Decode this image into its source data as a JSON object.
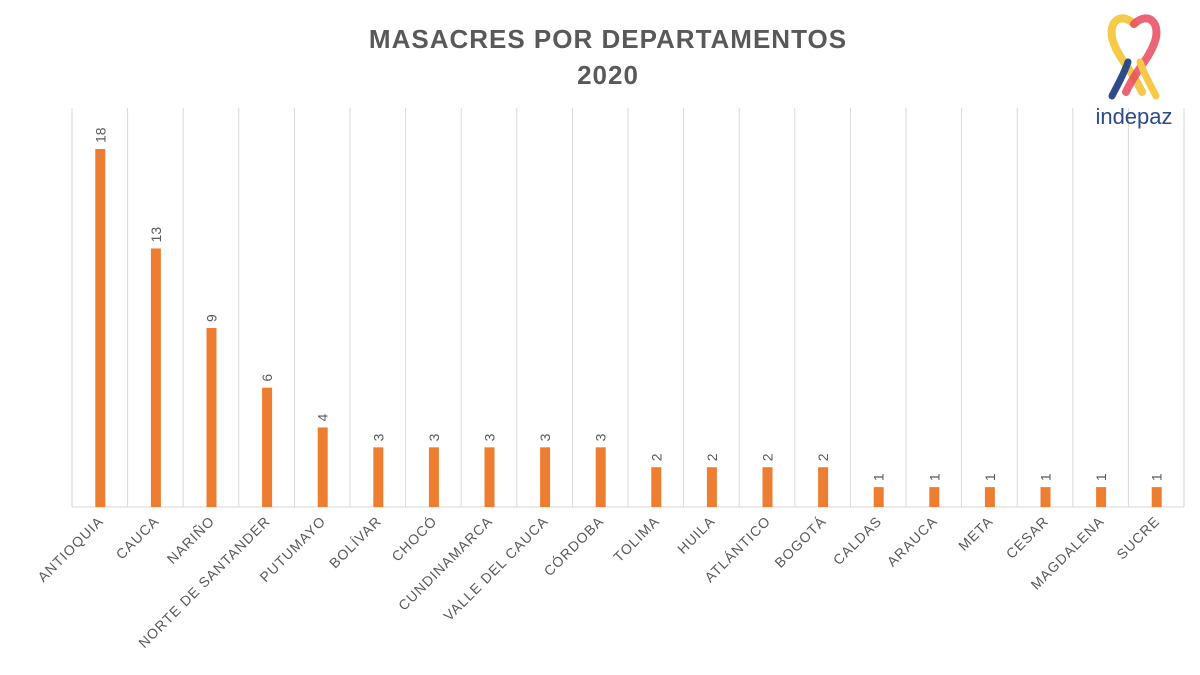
{
  "chart_data": {
    "type": "bar",
    "title": "MASACRES POR DEPARTAMENTOS",
    "subtitle": "2020",
    "categories": [
      "ANTIOQUIA",
      "CAUCA",
      "NARIÑO",
      "NORTE DE SANTANDER",
      "PUTUMAYO",
      "BOLÍVAR",
      "CHOCÓ",
      "CUNDINAMARCA",
      "VALLE DEL CAUCA",
      "CÓRDOBA",
      "TOLIMA",
      "HUILA",
      "ATLÁNTICO",
      "BOGOTÁ",
      "CALDAS",
      "ARAUCA",
      "META",
      "CESAR",
      "MAGDALENA",
      "SUCRE"
    ],
    "values": [
      18,
      13,
      9,
      6,
      4,
      3,
      3,
      3,
      3,
      3,
      2,
      2,
      2,
      2,
      1,
      1,
      1,
      1,
      1,
      1
    ],
    "xlabel": "",
    "ylabel": "",
    "ylim": [
      0,
      20
    ],
    "grid": "vertical",
    "bar_color": "#ED7D31",
    "label_color": "#595959"
  },
  "logo": {
    "text": "indepaz"
  }
}
